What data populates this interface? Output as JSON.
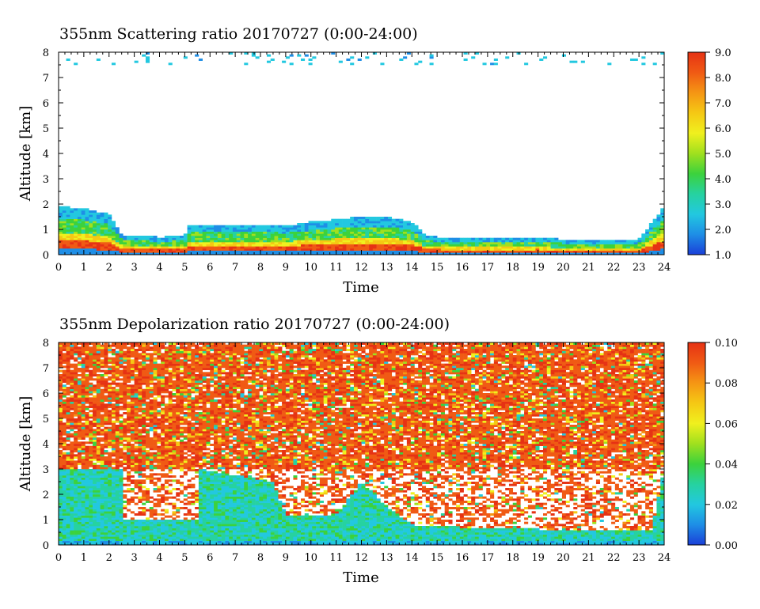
{
  "chart_data": [
    {
      "type": "heatmap",
      "title": "355nm Scattering ratio  20170727 (0:00-24:00)",
      "xlabel": "Time",
      "ylabel": "Altitude [km]",
      "xlim": [
        0,
        24
      ],
      "ylim": [
        0,
        8
      ],
      "x_ticks": [
        "0",
        "1",
        "2",
        "3",
        "4",
        "5",
        "6",
        "7",
        "8",
        "9",
        "10",
        "11",
        "12",
        "13",
        "14",
        "15",
        "16",
        "17",
        "18",
        "19",
        "20",
        "21",
        "22",
        "23",
        "24"
      ],
      "y_ticks": [
        "0",
        "1",
        "2",
        "3",
        "4",
        "5",
        "6",
        "7",
        "8"
      ],
      "colorbar": {
        "min": 1.0,
        "max": 9.0,
        "ticks": [
          "1.0",
          "2.0",
          "3.0",
          "4.0",
          "5.0",
          "6.0",
          "7.0",
          "8.0",
          "9.0"
        ],
        "colormap": [
          "#1a3fd8",
          "#1e8ee6",
          "#22c8e0",
          "#26d2a0",
          "#3cd23c",
          "#a0e01e",
          "#f0f01e",
          "#f5c814",
          "#f59614",
          "#f05a14",
          "#e63214"
        ]
      },
      "features": {
        "boundary_layer_top_km": [
          [
            0,
            1.9
          ],
          [
            1,
            1.85
          ],
          [
            2,
            1.6
          ],
          [
            2.5,
            0.8
          ],
          [
            3,
            0.75
          ],
          [
            4,
            0.7
          ],
          [
            5,
            0.75
          ],
          [
            5.2,
            1.2
          ],
          [
            6,
            1.2
          ],
          [
            7,
            1.2
          ],
          [
            8,
            1.2
          ],
          [
            9,
            1.15
          ],
          [
            10,
            1.3
          ],
          [
            11,
            1.4
          ],
          [
            12,
            1.5
          ],
          [
            13,
            1.5
          ],
          [
            14,
            1.3
          ],
          [
            14.5,
            0.8
          ],
          [
            15,
            0.7
          ],
          [
            16,
            0.65
          ],
          [
            17,
            0.65
          ],
          [
            18,
            0.65
          ],
          [
            19,
            0.7
          ],
          [
            20,
            0.6
          ],
          [
            21,
            0.6
          ],
          [
            22,
            0.55
          ],
          [
            23,
            0.6
          ],
          [
            24,
            1.9
          ]
        ],
        "high_cloud_fragments_km": [
          7.5,
          8.0
        ]
      }
    },
    {
      "type": "heatmap",
      "title": "355nm Depolarization ratio  20170727 (0:00-24:00)",
      "xlabel": "Time",
      "ylabel": "Altitude [km]",
      "xlim": [
        0,
        24
      ],
      "ylim": [
        0,
        8
      ],
      "x_ticks": [
        "0",
        "1",
        "2",
        "3",
        "4",
        "5",
        "6",
        "7",
        "8",
        "9",
        "10",
        "11",
        "12",
        "13",
        "14",
        "15",
        "16",
        "17",
        "18",
        "19",
        "20",
        "21",
        "22",
        "23",
        "24"
      ],
      "y_ticks": [
        "0",
        "1",
        "2",
        "3",
        "4",
        "5",
        "6",
        "7",
        "8"
      ],
      "colorbar": {
        "min": 0.0,
        "max": 0.1,
        "ticks": [
          "0.00",
          "0.02",
          "0.04",
          "0.06",
          "0.08",
          "0.10"
        ],
        "colormap": [
          "#1a3fd8",
          "#1e8ee6",
          "#22c8e0",
          "#26d2a0",
          "#3cd23c",
          "#a0e01e",
          "#f0f01e",
          "#f5c814",
          "#f59614",
          "#f05a14",
          "#e63214"
        ]
      },
      "features": {
        "low_depol_layer_top_km": [
          [
            0,
            3.0
          ],
          [
            2.5,
            3.0
          ],
          [
            2.6,
            1.0
          ],
          [
            5.5,
            1.0
          ],
          [
            5.6,
            3.0
          ],
          [
            8.5,
            2.5
          ],
          [
            9,
            1.2
          ],
          [
            11,
            1.2
          ],
          [
            12,
            2.5
          ],
          [
            13,
            1.5
          ],
          [
            14,
            0.8
          ],
          [
            16,
            0.7
          ],
          [
            20,
            0.6
          ],
          [
            23.5,
            0.6
          ],
          [
            24,
            3.0
          ]
        ],
        "noisy_high_depol_above_km": 3.0
      }
    }
  ]
}
